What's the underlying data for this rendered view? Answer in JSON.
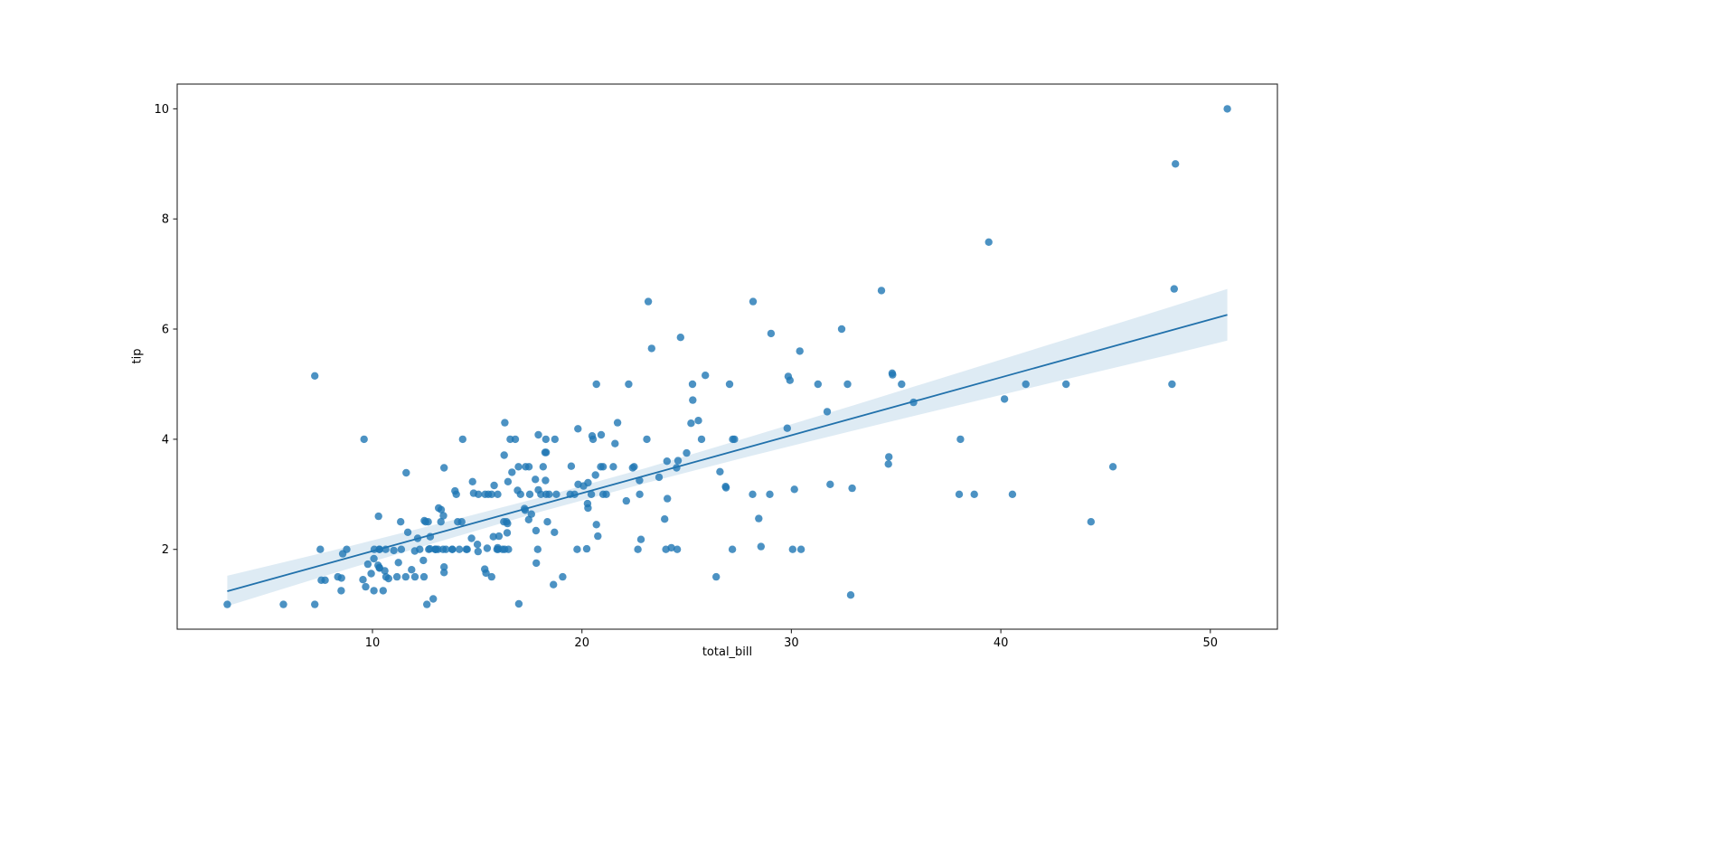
{
  "chart_data": {
    "type": "scatter",
    "title": "",
    "xlabel": "total_bill",
    "ylabel": "tip",
    "xlim": [
      0.68,
      53.2
    ],
    "ylim": [
      0.55,
      10.45
    ],
    "x_ticks": [
      10,
      20,
      30,
      40,
      50
    ],
    "y_ticks": [
      2,
      4,
      6,
      8,
      10
    ],
    "grid": false,
    "legend": null,
    "point_color": "#1f77b4",
    "line_color": "#2171ab",
    "band_color": "#1f77b4",
    "frame_color": "#262626",
    "points": [
      [
        16.99,
        1.01
      ],
      [
        10.34,
        1.66
      ],
      [
        21.01,
        3.5
      ],
      [
        23.68,
        3.31
      ],
      [
        24.59,
        3.61
      ],
      [
        25.29,
        4.71
      ],
      [
        8.77,
        2.0
      ],
      [
        26.88,
        3.12
      ],
      [
        15.04,
        1.96
      ],
      [
        14.78,
        3.23
      ],
      [
        10.27,
        1.71
      ],
      [
        35.26,
        5.0
      ],
      [
        15.42,
        1.57
      ],
      [
        18.43,
        3.0
      ],
      [
        14.83,
        3.02
      ],
      [
        21.58,
        3.92
      ],
      [
        10.33,
        1.67
      ],
      [
        16.29,
        3.71
      ],
      [
        16.97,
        3.5
      ],
      [
        20.65,
        3.35
      ],
      [
        17.92,
        4.08
      ],
      [
        20.29,
        2.75
      ],
      [
        15.77,
        2.23
      ],
      [
        39.42,
        7.58
      ],
      [
        19.82,
        3.18
      ],
      [
        17.81,
        2.34
      ],
      [
        13.37,
        2.0
      ],
      [
        12.69,
        2.0
      ],
      [
        21.7,
        4.3
      ],
      [
        19.65,
        3.0
      ],
      [
        9.55,
        1.45
      ],
      [
        18.35,
        2.5
      ],
      [
        15.06,
        3.0
      ],
      [
        20.69,
        2.45
      ],
      [
        17.78,
        3.27
      ],
      [
        24.06,
        3.6
      ],
      [
        16.31,
        2.0
      ],
      [
        16.93,
        3.07
      ],
      [
        18.69,
        2.31
      ],
      [
        31.27,
        5.0
      ],
      [
        16.04,
        2.24
      ],
      [
        17.46,
        2.54
      ],
      [
        13.94,
        3.06
      ],
      [
        9.68,
        1.32
      ],
      [
        30.4,
        5.6
      ],
      [
        18.29,
        3.0
      ],
      [
        22.23,
        5.0
      ],
      [
        32.4,
        6.0
      ],
      [
        28.55,
        2.05
      ],
      [
        18.04,
        3.0
      ],
      [
        12.54,
        2.5
      ],
      [
        10.29,
        2.6
      ],
      [
        34.81,
        5.2
      ],
      [
        9.94,
        1.56
      ],
      [
        25.56,
        4.34
      ],
      [
        19.49,
        3.51
      ],
      [
        38.01,
        3.0
      ],
      [
        26.41,
        1.5
      ],
      [
        11.24,
        1.76
      ],
      [
        48.27,
        6.73
      ],
      [
        20.29,
        3.21
      ],
      [
        13.81,
        2.0
      ],
      [
        11.02,
        1.98
      ],
      [
        18.29,
        3.76
      ],
      [
        17.59,
        2.64
      ],
      [
        20.08,
        3.15
      ],
      [
        16.45,
        2.47
      ],
      [
        3.07,
        1.0
      ],
      [
        20.23,
        2.01
      ],
      [
        15.01,
        2.09
      ],
      [
        12.02,
        1.97
      ],
      [
        17.07,
        3.0
      ],
      [
        26.86,
        3.14
      ],
      [
        25.28,
        5.0
      ],
      [
        14.73,
        2.2
      ],
      [
        10.51,
        1.25
      ],
      [
        17.92,
        3.08
      ],
      [
        27.2,
        4.0
      ],
      [
        22.76,
        3.0
      ],
      [
        17.29,
        2.71
      ],
      [
        19.44,
        3.0
      ],
      [
        16.66,
        3.4
      ],
      [
        10.07,
        1.83
      ],
      [
        32.68,
        5.0
      ],
      [
        15.98,
        2.03
      ],
      [
        34.83,
        5.17
      ],
      [
        13.03,
        2.0
      ],
      [
        18.28,
        4.0
      ],
      [
        24.71,
        5.85
      ],
      [
        21.16,
        3.0
      ],
      [
        28.97,
        3.0
      ],
      [
        22.49,
        3.5
      ],
      [
        5.75,
        1.0
      ],
      [
        16.32,
        4.3
      ],
      [
        22.75,
        3.25
      ],
      [
        40.17,
        4.73
      ],
      [
        27.28,
        4.0
      ],
      [
        12.03,
        1.5
      ],
      [
        21.01,
        3.0
      ],
      [
        12.46,
        1.5
      ],
      [
        11.35,
        2.5
      ],
      [
        15.38,
        3.0
      ],
      [
        44.3,
        2.5
      ],
      [
        22.42,
        3.48
      ],
      [
        20.92,
        4.08
      ],
      [
        15.36,
        1.64
      ],
      [
        20.49,
        4.06
      ],
      [
        25.21,
        4.29
      ],
      [
        18.24,
        3.76
      ],
      [
        14.31,
        4.0
      ],
      [
        14.0,
        3.0
      ],
      [
        7.25,
        1.0
      ],
      [
        38.07,
        4.0
      ],
      [
        23.95,
        2.55
      ],
      [
        25.71,
        4.0
      ],
      [
        17.31,
        3.5
      ],
      [
        29.93,
        5.07
      ],
      [
        10.65,
        1.5
      ],
      [
        12.43,
        1.8
      ],
      [
        24.08,
        2.92
      ],
      [
        11.69,
        2.31
      ],
      [
        13.42,
        1.68
      ],
      [
        14.26,
        2.5
      ],
      [
        15.95,
        2.0
      ],
      [
        12.48,
        2.52
      ],
      [
        29.8,
        4.2
      ],
      [
        8.52,
        1.48
      ],
      [
        14.52,
        2.0
      ],
      [
        11.38,
        2.0
      ],
      [
        22.82,
        2.18
      ],
      [
        19.08,
        1.5
      ],
      [
        20.27,
        2.83
      ],
      [
        11.17,
        1.5
      ],
      [
        12.26,
        2.0
      ],
      [
        18.26,
        3.25
      ],
      [
        8.51,
        1.25
      ],
      [
        10.33,
        2.0
      ],
      [
        14.15,
        2.0
      ],
      [
        16.0,
        2.0
      ],
      [
        13.16,
        2.75
      ],
      [
        17.47,
        3.5
      ],
      [
        34.3,
        6.7
      ],
      [
        41.19,
        5.0
      ],
      [
        27.05,
        5.0
      ],
      [
        16.43,
        2.3
      ],
      [
        8.35,
        1.5
      ],
      [
        18.64,
        1.36
      ],
      [
        11.87,
        1.63
      ],
      [
        9.78,
        1.73
      ],
      [
        7.51,
        2.0
      ],
      [
        14.07,
        2.5
      ],
      [
        13.13,
        2.0
      ],
      [
        17.26,
        2.74
      ],
      [
        24.55,
        2.0
      ],
      [
        19.77,
        2.0
      ],
      [
        29.85,
        5.14
      ],
      [
        48.17,
        5.0
      ],
      [
        25.0,
        3.75
      ],
      [
        13.39,
        2.61
      ],
      [
        16.49,
        2.0
      ],
      [
        21.5,
        3.5
      ],
      [
        12.66,
        2.5
      ],
      [
        16.21,
        2.0
      ],
      [
        13.81,
        2.0
      ],
      [
        17.51,
        3.0
      ],
      [
        24.52,
        3.48
      ],
      [
        20.76,
        2.24
      ],
      [
        31.71,
        4.5
      ],
      [
        10.59,
        1.61
      ],
      [
        10.63,
        2.0
      ],
      [
        50.81,
        10.0
      ],
      [
        15.81,
        3.16
      ],
      [
        7.25,
        5.15
      ],
      [
        31.85,
        3.18
      ],
      [
        16.82,
        4.0
      ],
      [
        32.9,
        3.11
      ],
      [
        17.89,
        2.0
      ],
      [
        14.48,
        2.0
      ],
      [
        9.6,
        4.0
      ],
      [
        34.63,
        3.55
      ],
      [
        34.65,
        3.68
      ],
      [
        23.33,
        5.65
      ],
      [
        45.35,
        3.5
      ],
      [
        23.17,
        6.5
      ],
      [
        40.55,
        3.0
      ],
      [
        20.69,
        5.0
      ],
      [
        20.9,
        3.5
      ],
      [
        30.46,
        2.0
      ],
      [
        18.15,
        3.5
      ],
      [
        23.1,
        4.0
      ],
      [
        15.69,
        1.5
      ],
      [
        19.81,
        4.19
      ],
      [
        28.44,
        2.56
      ],
      [
        15.48,
        2.02
      ],
      [
        16.58,
        4.0
      ],
      [
        7.56,
        1.44
      ],
      [
        10.34,
        2.0
      ],
      [
        43.11,
        5.0
      ],
      [
        13.0,
        2.0
      ],
      [
        13.51,
        2.0
      ],
      [
        18.71,
        4.0
      ],
      [
        12.74,
        2.01
      ],
      [
        13.0,
        2.0
      ],
      [
        16.4,
        2.5
      ],
      [
        20.53,
        4.0
      ],
      [
        16.47,
        3.23
      ],
      [
        26.59,
        3.41
      ],
      [
        38.73,
        3.0
      ],
      [
        24.27,
        2.03
      ],
      [
        12.76,
        2.23
      ],
      [
        30.06,
        2.0
      ],
      [
        25.89,
        5.16
      ],
      [
        48.33,
        9.0
      ],
      [
        13.27,
        2.5
      ],
      [
        28.17,
        6.5
      ],
      [
        12.9,
        1.1
      ],
      [
        28.15,
        3.0
      ],
      [
        11.59,
        1.5
      ],
      [
        7.74,
        1.44
      ],
      [
        30.14,
        3.09
      ],
      [
        12.16,
        2.2
      ],
      [
        13.42,
        3.48
      ],
      [
        8.58,
        1.92
      ],
      [
        15.98,
        3.0
      ],
      [
        13.42,
        1.58
      ],
      [
        16.27,
        2.5
      ],
      [
        10.09,
        2.0
      ],
      [
        20.45,
        3.0
      ],
      [
        13.28,
        2.72
      ],
      [
        22.12,
        2.88
      ],
      [
        24.01,
        2.0
      ],
      [
        15.69,
        3.0
      ],
      [
        11.61,
        3.39
      ],
      [
        10.77,
        1.47
      ],
      [
        15.53,
        3.0
      ],
      [
        10.07,
        1.25
      ],
      [
        12.6,
        1.0
      ],
      [
        32.83,
        1.17
      ],
      [
        35.83,
        4.67
      ],
      [
        29.03,
        5.92
      ],
      [
        27.18,
        2.0
      ],
      [
        22.67,
        2.0
      ],
      [
        17.82,
        1.75
      ],
      [
        18.78,
        3.0
      ]
    ],
    "regression_line": {
      "x": [
        3.07,
        50.81
      ],
      "y": [
        1.24,
        6.26
      ]
    },
    "ci_band": {
      "x": [
        3.07,
        8.0,
        13.0,
        18.0,
        23.0,
        28.0,
        33.0,
        38.0,
        43.0,
        48.0,
        50.81
      ],
      "lower": [
        0.97,
        1.55,
        2.12,
        2.68,
        3.2,
        3.69,
        4.16,
        4.62,
        5.08,
        5.53,
        5.79
      ],
      "upper": [
        1.52,
        1.97,
        2.45,
        2.94,
        3.47,
        4.04,
        4.62,
        5.21,
        5.8,
        6.39,
        6.73
      ]
    }
  }
}
